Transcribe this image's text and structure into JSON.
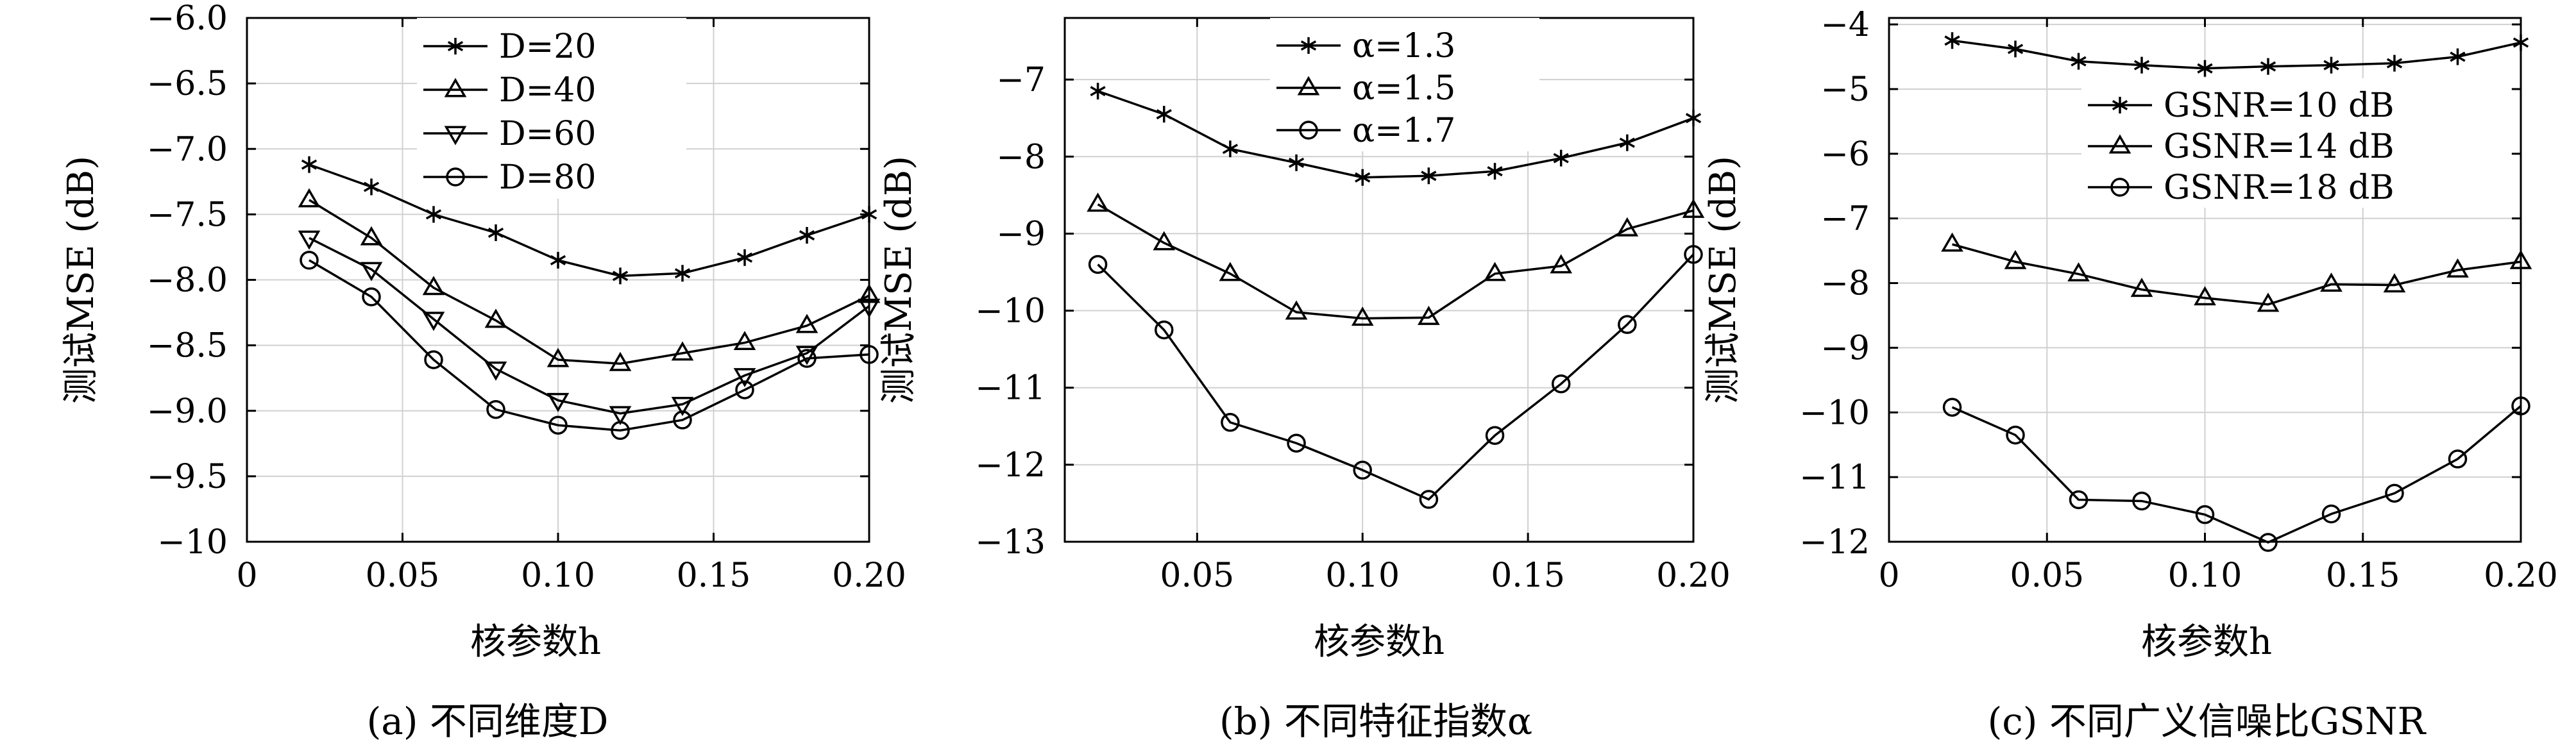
{
  "chart_data": [
    {
      "type": "line",
      "caption": "(a) 不同维度D",
      "xlabel": "核参数h",
      "ylabel": "测试MSE (dB)",
      "xlim": [
        0,
        0.2
      ],
      "ylim": [
        -10,
        -6
      ],
      "xticks": [
        0,
        0.05,
        0.1,
        0.15,
        0.2
      ],
      "xtick_labels": [
        "0",
        "0.05",
        "0.10",
        "0.15",
        "0.20"
      ],
      "yticks": [
        -6,
        -6.5,
        -7,
        -7.5,
        -8,
        -8.5,
        -9,
        -9.5,
        -10
      ],
      "ytick_labels": [
        "−6.0",
        "−6.5",
        "−7.0",
        "−7.5",
        "−8.0",
        "−8.5",
        "−9.0",
        "−9.5",
        "−10"
      ],
      "grid": true,
      "legend_position": "top-center",
      "x": [
        0.02,
        0.04,
        0.06,
        0.08,
        0.1,
        0.12,
        0.14,
        0.16,
        0.18,
        0.2
      ],
      "series": [
        {
          "name": "D=20",
          "marker": "star",
          "values": [
            -7.12,
            -7.29,
            -7.5,
            -7.64,
            -7.85,
            -7.97,
            -7.95,
            -7.83,
            -7.66,
            -7.5
          ]
        },
        {
          "name": "D=40",
          "marker": "triangle-up",
          "values": [
            -7.39,
            -7.68,
            -8.06,
            -8.31,
            -8.61,
            -8.64,
            -8.56,
            -8.48,
            -8.35,
            -8.12
          ]
        },
        {
          "name": "D=60",
          "marker": "triangle-down",
          "values": [
            -7.68,
            -7.92,
            -8.3,
            -8.68,
            -8.92,
            -9.02,
            -8.95,
            -8.73,
            -8.56,
            -8.2
          ]
        },
        {
          "name": "D=80",
          "marker": "circle",
          "values": [
            -7.85,
            -8.13,
            -8.61,
            -8.99,
            -9.11,
            -9.15,
            -9.07,
            -8.84,
            -8.6,
            -8.57
          ]
        }
      ]
    },
    {
      "type": "line",
      "caption": "(b) 不同特征指数α",
      "xlabel": "核参数h",
      "ylabel": "测试MSE (dB)",
      "xlim": [
        0.01,
        0.2
      ],
      "ylim": [
        -13,
        -6.2
      ],
      "xticks": [
        0.05,
        0.1,
        0.15,
        0.2
      ],
      "xtick_labels": [
        "0.05",
        "0.10",
        "0.15",
        "0.20"
      ],
      "yticks": [
        -7,
        -8,
        -9,
        -10,
        -11,
        -12,
        -13
      ],
      "ytick_labels": [
        "−7",
        "−8",
        "−9",
        "−10",
        "−11",
        "−12",
        "−13"
      ],
      "grid": true,
      "legend_position": "top-center",
      "x": [
        0.02,
        0.04,
        0.06,
        0.08,
        0.1,
        0.12,
        0.14,
        0.16,
        0.18,
        0.2
      ],
      "series": [
        {
          "name": "α=1.3",
          "marker": "star",
          "values": [
            -7.15,
            -7.45,
            -7.9,
            -8.08,
            -8.27,
            -8.25,
            -8.19,
            -8.02,
            -7.82,
            -7.5
          ]
        },
        {
          "name": "α=1.5",
          "marker": "triangle-up",
          "values": [
            -8.62,
            -9.12,
            -9.52,
            -10.02,
            -10.1,
            -10.09,
            -9.52,
            -9.42,
            -8.94,
            -8.7
          ]
        },
        {
          "name": "α=1.7",
          "marker": "circle",
          "values": [
            -9.4,
            -10.25,
            -11.45,
            -11.72,
            -12.07,
            -12.45,
            -11.62,
            -10.95,
            -10.18,
            -9.27
          ]
        }
      ]
    },
    {
      "type": "line",
      "caption": "(c) 不同广义信噪比GSNR",
      "xlabel": "核参数h",
      "ylabel": "测试MSE (dB)",
      "xlim": [
        0,
        0.2
      ],
      "ylim": [
        -12,
        -3.9
      ],
      "xticks": [
        0,
        0.05,
        0.1,
        0.15,
        0.2
      ],
      "xtick_labels": [
        "0",
        "0.05",
        "0.10",
        "0.15",
        "0.20"
      ],
      "yticks": [
        -4,
        -5,
        -6,
        -7,
        -8,
        -9,
        -10,
        -11,
        -12
      ],
      "ytick_labels": [
        "−4",
        "−5",
        "−6",
        "−7",
        "−8",
        "−9",
        "−10",
        "−11",
        "−12"
      ],
      "grid": true,
      "legend_position": "top-right",
      "x": [
        0.02,
        0.04,
        0.06,
        0.08,
        0.1,
        0.12,
        0.14,
        0.16,
        0.18,
        0.2
      ],
      "series": [
        {
          "name": "GSNR=10 dB",
          "marker": "star",
          "values": [
            -4.25,
            -4.38,
            -4.57,
            -4.63,
            -4.68,
            -4.65,
            -4.63,
            -4.6,
            -4.5,
            -4.28
          ]
        },
        {
          "name": "GSNR=14 dB",
          "marker": "triangle-up",
          "values": [
            -7.4,
            -7.67,
            -7.86,
            -8.1,
            -8.23,
            -8.33,
            -8.02,
            -8.03,
            -7.8,
            -7.67
          ]
        },
        {
          "name": "GSNR=18 dB",
          "marker": "circle",
          "values": [
            -9.92,
            -10.35,
            -11.35,
            -11.37,
            -11.58,
            -12.01,
            -11.57,
            -11.25,
            -10.72,
            -9.9
          ]
        }
      ]
    }
  ]
}
